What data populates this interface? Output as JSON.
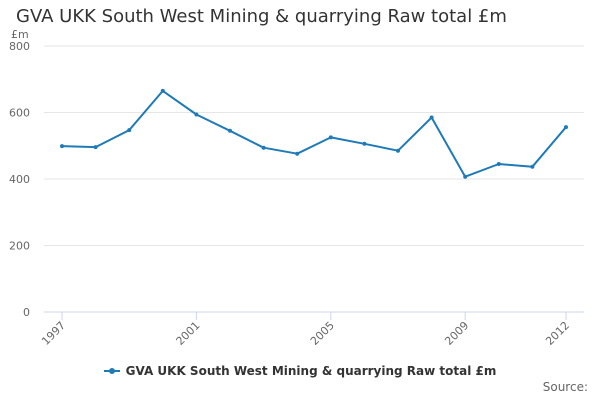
{
  "title": "GVA UKK South West Mining & quarrying Raw total £m",
  "source_label": "Source:",
  "colors": {
    "series": "#1f7ab8",
    "grid": "#e6e6e6",
    "axis": "#ccd6eb"
  },
  "chart_data": {
    "type": "line",
    "title": "GVA UKK South West Mining & quarrying Raw total £m",
    "xlabel": "",
    "ylabel": "£m",
    "ylim": [
      0,
      800
    ],
    "yticks": [
      0,
      200,
      400,
      600,
      800
    ],
    "x": [
      1997,
      1998,
      1999,
      2000,
      2001,
      2002,
      2003,
      2004,
      2005,
      2006,
      2007,
      2008,
      2009,
      2010,
      2011,
      2012
    ],
    "xticks": [
      1997,
      2001,
      2005,
      2009,
      2012
    ],
    "series": [
      {
        "name": "GVA UKK South West Mining & quarrying Raw total £m",
        "values": [
          499,
          496,
          547,
          665,
          594,
          545,
          494,
          476,
          525,
          506,
          485,
          585,
          407,
          445,
          437,
          556
        ]
      }
    ],
    "grid": true,
    "legend": "bottom-center"
  }
}
